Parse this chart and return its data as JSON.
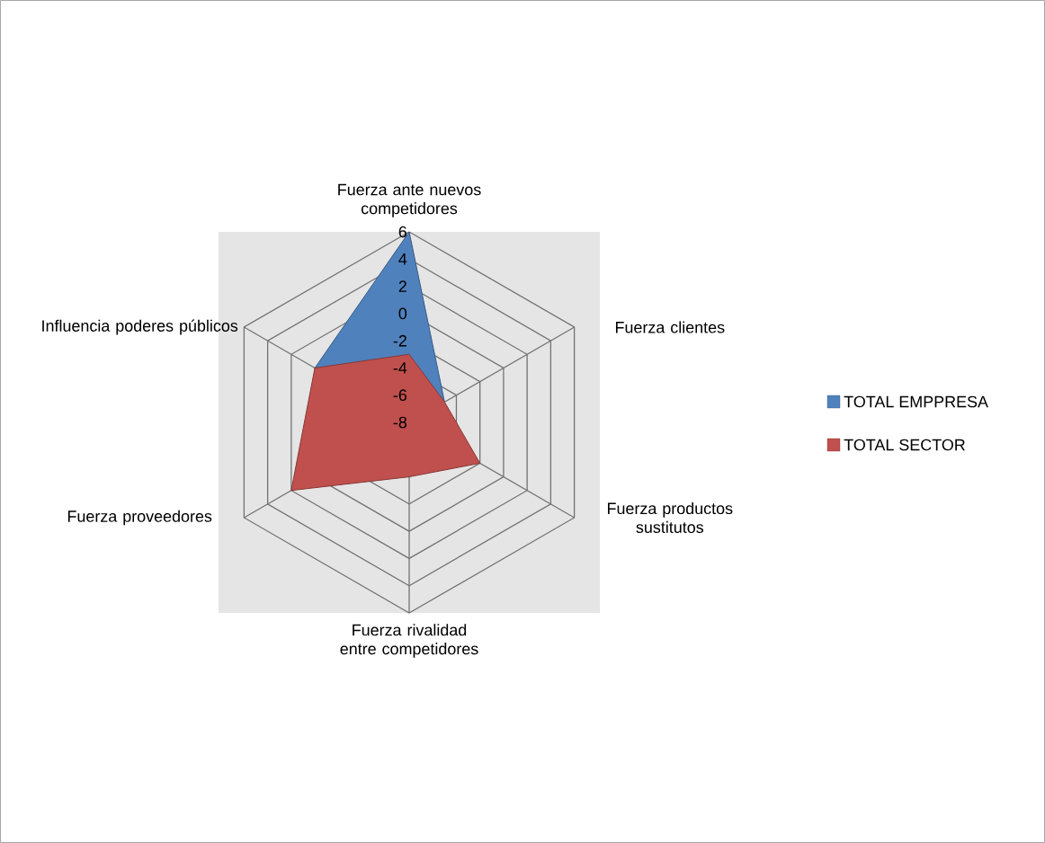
{
  "chart_data": {
    "type": "radar",
    "categories": [
      "Fuerza ante nuevos competidores",
      "Fuerza clientes",
      "Fuerza productos sustitutos",
      "Fuerza rivalidad entre competidores",
      "Fuerza proveedores",
      "Influencia poderes públicos"
    ],
    "series": [
      {
        "name": "TOTAL EMPPRESA",
        "color": "#4f81bd",
        "values": [
          6,
          -5,
          null,
          null,
          null,
          0
        ]
      },
      {
        "name": "TOTAL SECTOR",
        "color": "#c0504d",
        "values": [
          -3,
          -5,
          -2,
          -4,
          2,
          0
        ]
      }
    ],
    "ylim": [
      -8,
      6
    ],
    "yticks": [
      -8,
      -6,
      -4,
      -2,
      0,
      2,
      4,
      6
    ],
    "grid": true,
    "legend": "right"
  }
}
